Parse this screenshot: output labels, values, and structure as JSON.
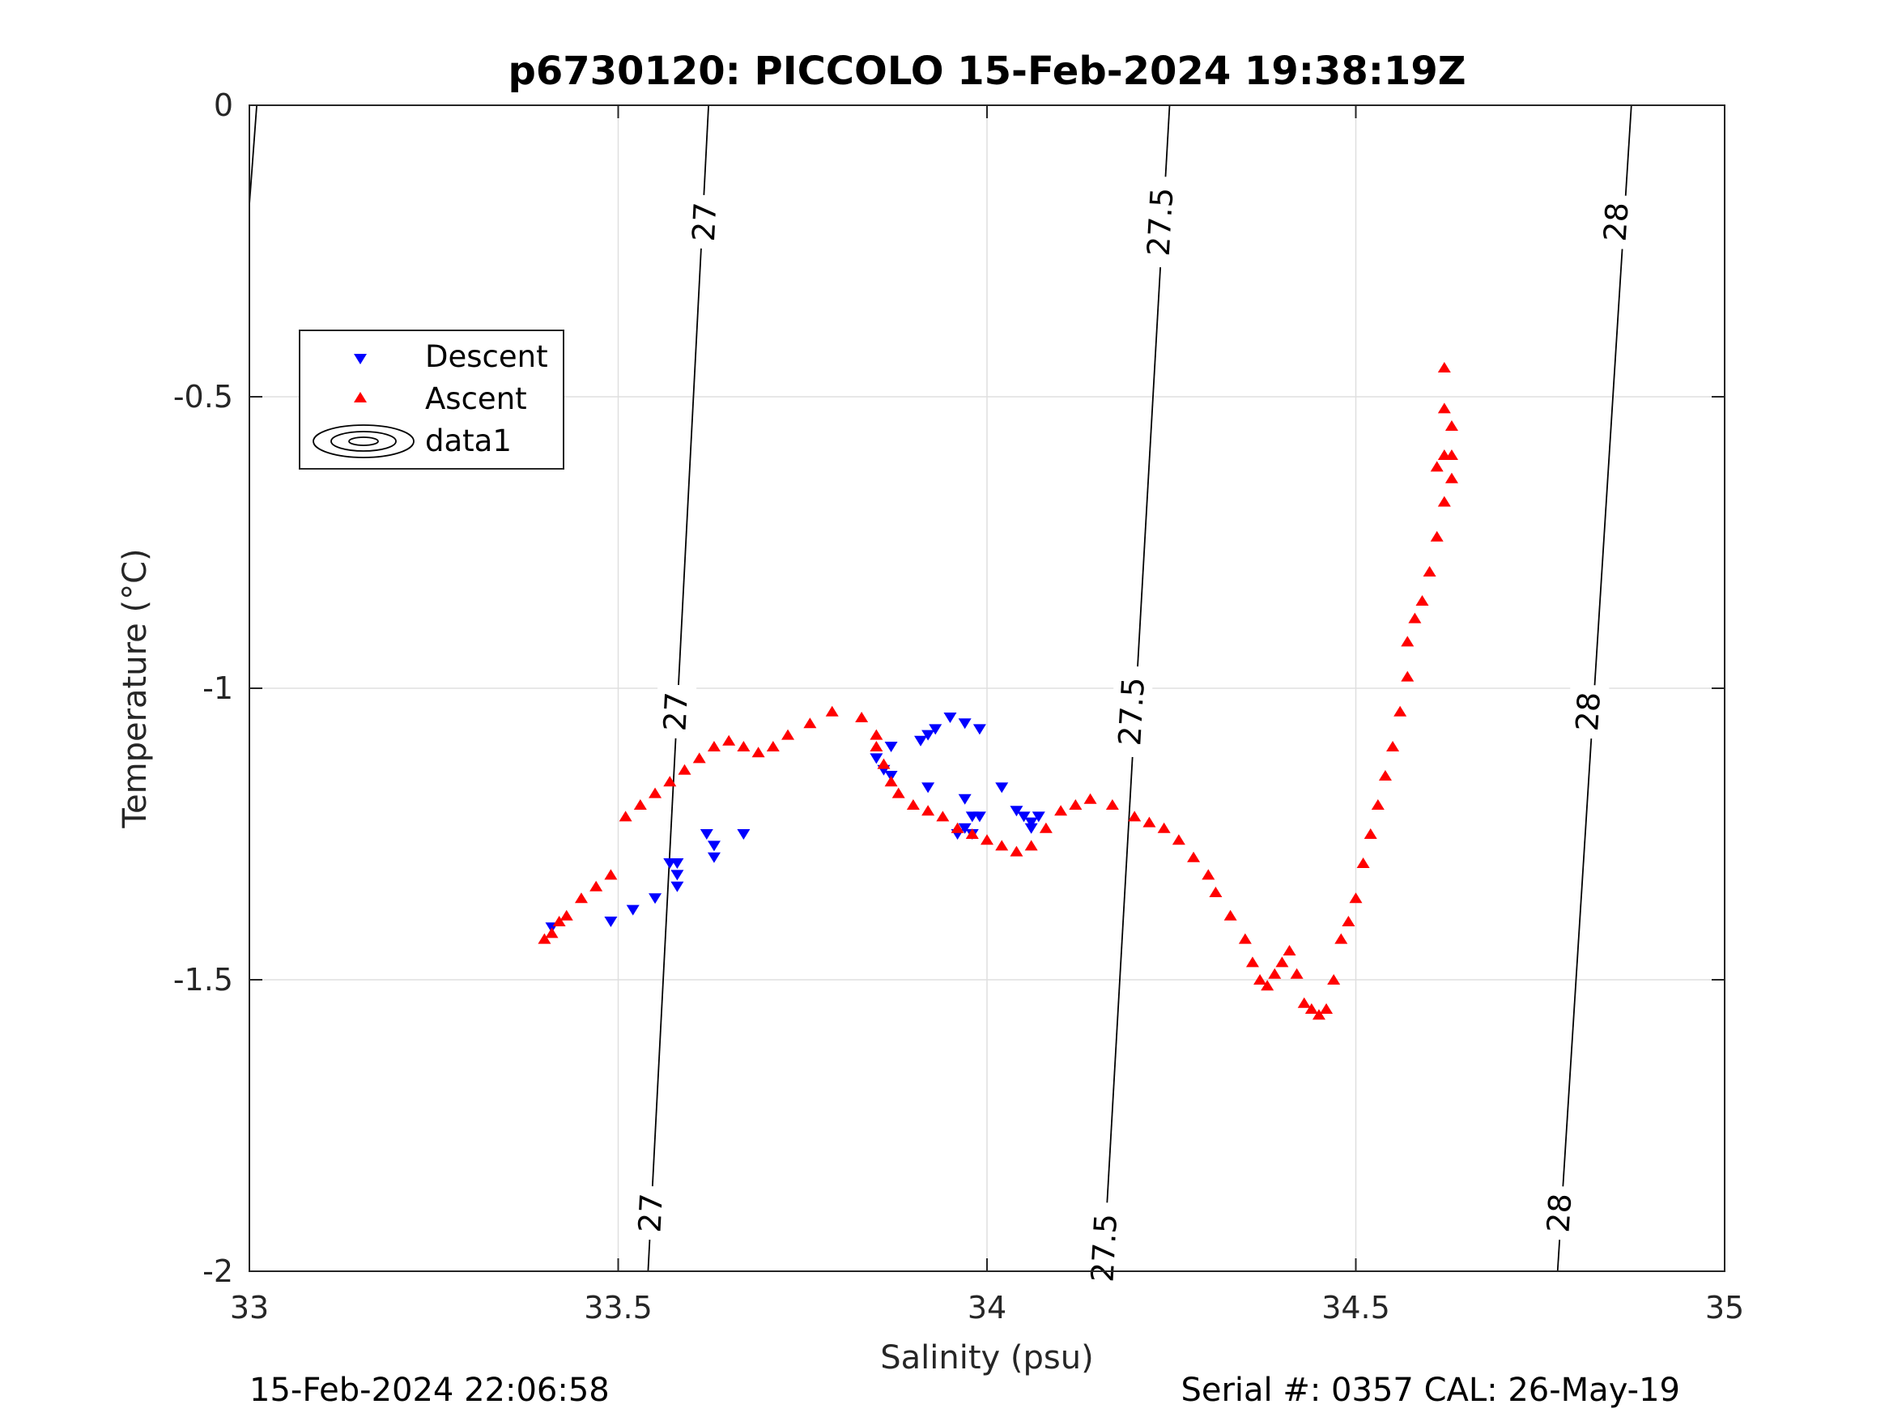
{
  "chart_data": {
    "type": "scatter",
    "title": "p6730120: PICCOLO 15-Feb-2024 19:38:19Z",
    "xlabel": "Salinity (psu)",
    "ylabel": "Temperature (°C)",
    "xlim": [
      33,
      35
    ],
    "ylim": [
      -2,
      0
    ],
    "xticks": [
      "33",
      "33.5",
      "34",
      "34.5",
      "35"
    ],
    "yticks": [
      "-2",
      "-1.5",
      "-1",
      "-0.5",
      "0"
    ],
    "grid": true,
    "legend_position": "upper-left",
    "series": [
      {
        "name": "Descent",
        "marker": "triangle-down",
        "color": "#0000ff",
        "points": [
          [
            33.41,
            -1.41
          ],
          [
            33.49,
            -1.4
          ],
          [
            33.52,
            -1.38
          ],
          [
            33.55,
            -1.36
          ],
          [
            33.57,
            -1.3
          ],
          [
            33.58,
            -1.3
          ],
          [
            33.58,
            -1.32
          ],
          [
            33.58,
            -1.34
          ],
          [
            33.62,
            -1.25
          ],
          [
            33.63,
            -1.27
          ],
          [
            33.63,
            -1.29
          ],
          [
            33.67,
            -1.25
          ],
          [
            33.85,
            -1.12
          ],
          [
            33.86,
            -1.14
          ],
          [
            33.87,
            -1.15
          ],
          [
            33.87,
            -1.1
          ],
          [
            33.91,
            -1.09
          ],
          [
            33.92,
            -1.08
          ],
          [
            33.93,
            -1.07
          ],
          [
            33.95,
            -1.05
          ],
          [
            33.97,
            -1.06
          ],
          [
            33.99,
            -1.07
          ],
          [
            33.92,
            -1.17
          ],
          [
            33.96,
            -1.25
          ],
          [
            33.97,
            -1.19
          ],
          [
            33.97,
            -1.24
          ],
          [
            33.98,
            -1.22
          ],
          [
            33.98,
            -1.25
          ],
          [
            33.99,
            -1.22
          ],
          [
            34.02,
            -1.17
          ],
          [
            34.04,
            -1.21
          ],
          [
            34.05,
            -1.22
          ],
          [
            34.06,
            -1.23
          ],
          [
            34.06,
            -1.24
          ],
          [
            34.07,
            -1.22
          ]
        ]
      },
      {
        "name": "Ascent",
        "marker": "triangle-up",
        "color": "#ff0000",
        "points": [
          [
            33.4,
            -1.43
          ],
          [
            33.41,
            -1.42
          ],
          [
            33.42,
            -1.4
          ],
          [
            33.43,
            -1.39
          ],
          [
            33.45,
            -1.36
          ],
          [
            33.47,
            -1.34
          ],
          [
            33.49,
            -1.32
          ],
          [
            33.51,
            -1.22
          ],
          [
            33.53,
            -1.2
          ],
          [
            33.55,
            -1.18
          ],
          [
            33.57,
            -1.16
          ],
          [
            33.59,
            -1.14
          ],
          [
            33.61,
            -1.12
          ],
          [
            33.63,
            -1.1
          ],
          [
            33.65,
            -1.09
          ],
          [
            33.67,
            -1.1
          ],
          [
            33.69,
            -1.11
          ],
          [
            33.71,
            -1.1
          ],
          [
            33.73,
            -1.08
          ],
          [
            33.76,
            -1.06
          ],
          [
            33.79,
            -1.04
          ],
          [
            33.83,
            -1.05
          ],
          [
            33.85,
            -1.08
          ],
          [
            33.85,
            -1.1
          ],
          [
            33.86,
            -1.13
          ],
          [
            33.87,
            -1.16
          ],
          [
            33.88,
            -1.18
          ],
          [
            33.9,
            -1.2
          ],
          [
            33.92,
            -1.21
          ],
          [
            33.94,
            -1.22
          ],
          [
            33.96,
            -1.24
          ],
          [
            33.98,
            -1.25
          ],
          [
            34.0,
            -1.26
          ],
          [
            34.02,
            -1.27
          ],
          [
            34.04,
            -1.28
          ],
          [
            34.06,
            -1.27
          ],
          [
            34.08,
            -1.24
          ],
          [
            34.1,
            -1.21
          ],
          [
            34.12,
            -1.2
          ],
          [
            34.14,
            -1.19
          ],
          [
            34.17,
            -1.2
          ],
          [
            34.2,
            -1.22
          ],
          [
            34.22,
            -1.23
          ],
          [
            34.24,
            -1.24
          ],
          [
            34.26,
            -1.26
          ],
          [
            34.28,
            -1.29
          ],
          [
            34.3,
            -1.32
          ],
          [
            34.31,
            -1.35
          ],
          [
            34.33,
            -1.39
          ],
          [
            34.35,
            -1.43
          ],
          [
            34.36,
            -1.47
          ],
          [
            34.37,
            -1.5
          ],
          [
            34.38,
            -1.51
          ],
          [
            34.39,
            -1.49
          ],
          [
            34.4,
            -1.47
          ],
          [
            34.41,
            -1.45
          ],
          [
            34.42,
            -1.49
          ],
          [
            34.43,
            -1.54
          ],
          [
            34.44,
            -1.55
          ],
          [
            34.45,
            -1.56
          ],
          [
            34.46,
            -1.55
          ],
          [
            34.47,
            -1.5
          ],
          [
            34.48,
            -1.43
          ],
          [
            34.49,
            -1.4
          ],
          [
            34.5,
            -1.36
          ],
          [
            34.51,
            -1.3
          ],
          [
            34.52,
            -1.25
          ],
          [
            34.53,
            -1.2
          ],
          [
            34.54,
            -1.15
          ],
          [
            34.55,
            -1.1
          ],
          [
            34.56,
            -1.04
          ],
          [
            34.57,
            -0.98
          ],
          [
            34.57,
            -0.92
          ],
          [
            34.58,
            -0.88
          ],
          [
            34.59,
            -0.85
          ],
          [
            34.6,
            -0.8
          ],
          [
            34.61,
            -0.74
          ],
          [
            34.62,
            -0.68
          ],
          [
            34.62,
            -0.6
          ],
          [
            34.62,
            -0.52
          ],
          [
            34.62,
            -0.45
          ],
          [
            34.63,
            -0.55
          ],
          [
            34.63,
            -0.6
          ],
          [
            34.63,
            -0.64
          ],
          [
            34.61,
            -0.62
          ]
        ]
      },
      {
        "name": "data1",
        "kind": "contour",
        "color": "#000000",
        "levels": [
          {
            "label": "27",
            "points": [
              [
                33.5405,
                -2.0
              ],
              [
                33.6225,
                0.0
              ]
            ],
            "label_positions": [
              [
                33.544,
                -1.9
              ],
              [
                33.578,
                -1.04
              ],
              [
                33.617,
                -0.2
              ]
            ]
          },
          {
            "label": "27.5",
            "points": [
              [
                34.1575,
                -2.0
              ],
              [
                34.2475,
                0.0
              ]
            ],
            "label_positions": [
              [
                34.159,
                -1.96
              ],
              [
                34.196,
                -1.04
              ],
              [
                34.235,
                -0.2
              ]
            ]
          },
          {
            "label": "28",
            "points": [
              [
                34.7735,
                -2.0
              ],
              [
                34.8735,
                0.0
              ]
            ],
            "label_positions": [
              [
                34.776,
                -1.9
              ],
              [
                34.815,
                -1.04
              ],
              [
                34.853,
                -0.2
              ]
            ]
          },
          {
            "label": "",
            "points": [
              [
                33.0,
                -0.17
              ],
              [
                33.01,
                0.0
              ]
            ],
            "label_positions": []
          }
        ]
      }
    ]
  },
  "footer": {
    "left": "15-Feb-2024 22:06:58",
    "right": "Serial #: 0357  CAL: 26-May-19"
  }
}
